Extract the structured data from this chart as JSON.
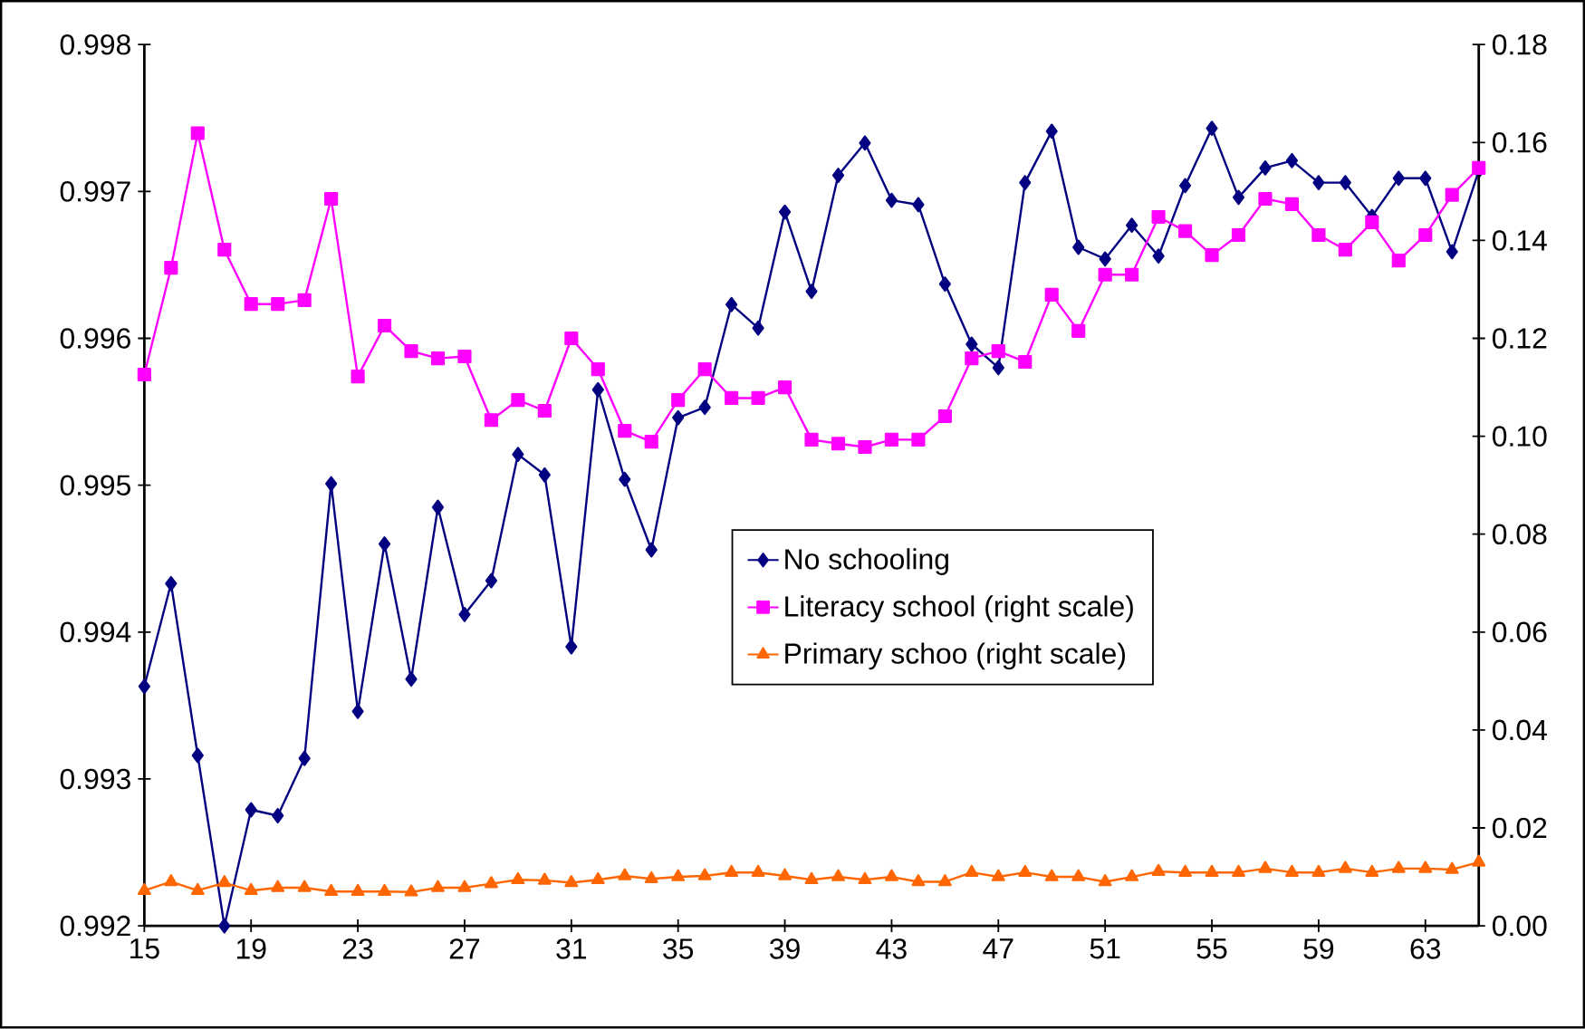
{
  "chart_data": {
    "type": "line",
    "x": [
      15,
      16,
      17,
      18,
      19,
      20,
      21,
      22,
      23,
      24,
      25,
      26,
      27,
      28,
      29,
      30,
      31,
      32,
      33,
      34,
      35,
      36,
      37,
      38,
      39,
      40,
      41,
      42,
      43,
      44,
      45,
      46,
      47,
      48,
      49,
      50,
      51,
      52,
      53,
      54,
      55,
      56,
      57,
      58,
      59,
      60,
      61,
      62,
      63,
      64,
      65
    ],
    "xlim": [
      15,
      65
    ],
    "xticks": [
      15,
      19,
      23,
      27,
      31,
      35,
      39,
      43,
      47,
      51,
      55,
      59,
      63
    ],
    "ylim": [
      0.992,
      0.998
    ],
    "yticks": [
      0.992,
      0.993,
      0.994,
      0.995,
      0.996,
      0.997,
      0.998
    ],
    "y2lim": [
      0,
      0.18
    ],
    "y2ticks": [
      {
        "value": 0,
        "label": "0.00"
      },
      0.02,
      0.04,
      0.06,
      0.08,
      {
        "value": 0.1,
        "label": "0.10"
      },
      0.12,
      0.14,
      0.16,
      0.18
    ],
    "legend": "right",
    "grid": false,
    "line_style": "solid",
    "series": [
      {
        "name": "No schooling",
        "color": "#000080",
        "marker": "diamond",
        "values": [
          0.99363,
          0.99433,
          0.99316,
          0.992,
          0.99279,
          0.99275,
          0.99314,
          0.99501,
          0.99346,
          0.9946,
          0.99368,
          0.99485,
          0.99412,
          0.99435,
          0.99521,
          0.99507,
          0.9939,
          0.99565,
          0.99504,
          0.99456,
          0.99546,
          0.99553,
          0.99623,
          0.99607,
          0.99686,
          0.99632,
          0.99711,
          0.99733,
          0.99694,
          0.99691,
          0.99637,
          0.99596,
          0.9958,
          0.99706,
          0.99741,
          0.99662,
          0.99654,
          0.99677,
          0.99656,
          0.99704,
          0.99743,
          0.99696,
          0.99716,
          0.99721,
          0.99706,
          0.99706,
          0.99683,
          0.99709,
          0.99709,
          0.99659,
          0.99714
        ]
      },
      {
        "name": "Literacy school (right scale)",
        "color": "#ff00ff",
        "marker": "square",
        "axis": "y2",
        "values": [
          0.1126,
          0.1344,
          0.1619,
          0.1381,
          0.127,
          0.127,
          0.1278,
          0.1485,
          0.1122,
          0.1226,
          0.1174,
          0.1159,
          0.1163,
          0.1033,
          0.1074,
          0.1052,
          0.12,
          0.1137,
          0.1011,
          0.0989,
          0.1074,
          0.1137,
          0.1078,
          0.1078,
          0.11,
          0.0993,
          0.0985,
          0.0978,
          0.0993,
          0.0993,
          0.1041,
          0.1159,
          0.1174,
          0.1152,
          0.1289,
          0.1215,
          0.133,
          0.133,
          0.1448,
          0.1419,
          0.137,
          0.1411,
          0.1485,
          0.1474,
          0.1411,
          0.1381,
          0.1437,
          0.1359,
          0.1411,
          0.1493,
          0.1548
        ]
      },
      {
        "name": "Primary schoo (right scale)",
        "color": "#ff6600",
        "marker": "triangle",
        "axis": "y2",
        "values": [
          0.0072,
          0.009,
          0.0072,
          0.0088,
          0.0072,
          0.0078,
          0.0078,
          0.007,
          0.007,
          0.007,
          0.0069,
          0.0078,
          0.0078,
          0.0086,
          0.0094,
          0.0093,
          0.0088,
          0.0094,
          0.0102,
          0.0096,
          0.01,
          0.0102,
          0.0109,
          0.0109,
          0.0102,
          0.0094,
          0.01,
          0.0094,
          0.01,
          0.009,
          0.009,
          0.0109,
          0.01,
          0.0109,
          0.01,
          0.01,
          0.009,
          0.01,
          0.0111,
          0.0109,
          0.0109,
          0.0109,
          0.0117,
          0.0109,
          0.0109,
          0.0117,
          0.0109,
          0.0117,
          0.0117,
          0.0115,
          0.013
        ]
      }
    ]
  }
}
